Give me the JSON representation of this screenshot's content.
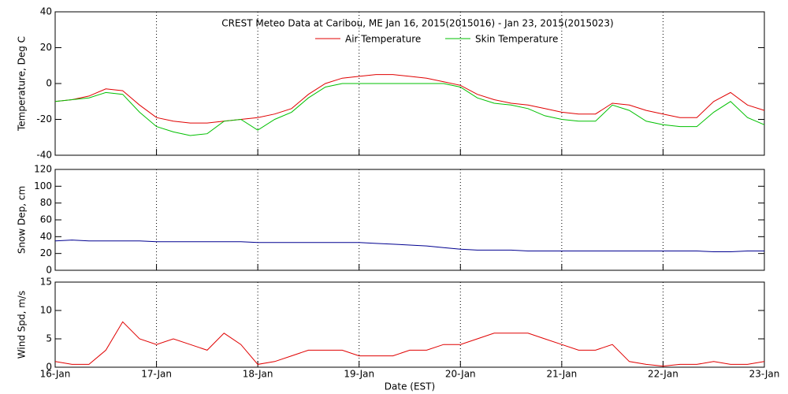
{
  "chart_data": [
    {
      "type": "line",
      "title": "CREST Meteo Data at Caribou, ME   Jan 16, 2015(2015016) - Jan 23, 2015(2015023)",
      "y_label": "Temperature, Deg C",
      "x": [
        0,
        4,
        8,
        12,
        16,
        20,
        24,
        28,
        32,
        36,
        40,
        44,
        48,
        52,
        56,
        60,
        64,
        68,
        72,
        76,
        80,
        84,
        88,
        92,
        96,
        100,
        104,
        108,
        112,
        116,
        120,
        124,
        128,
        132,
        136,
        140,
        144,
        148,
        152,
        156,
        160,
        164,
        168
      ],
      "series": [
        {
          "name": "Air Temperature",
          "color": "#e00000",
          "values": [
            -10,
            -9,
            -7,
            -3,
            -4,
            -12,
            -19,
            -21,
            -22,
            -22,
            -21,
            -20,
            -19,
            -17,
            -14,
            -6,
            0,
            3,
            4,
            5,
            5,
            4,
            3,
            1,
            -1,
            -6,
            -9,
            -11,
            -12,
            -14,
            -16,
            -17,
            -17,
            -11,
            -12,
            -15,
            -17,
            -19,
            -19,
            -10,
            -5,
            -12,
            -15
          ]
        },
        {
          "name": "Skin Temperature",
          "color": "#00c000",
          "values": [
            -10,
            -9,
            -8,
            -5,
            -6,
            -16,
            -24,
            -27,
            -29,
            -28,
            -21,
            -20,
            -26,
            -20,
            -16,
            -8,
            -2,
            0,
            0,
            0,
            0,
            0,
            0,
            0,
            -2,
            -8,
            -11,
            -12,
            -14,
            -18,
            -20,
            -21,
            -21,
            -12,
            -15,
            -21,
            -23,
            -24,
            -24,
            -16,
            -10,
            -19,
            -23
          ]
        }
      ],
      "xlim": [
        0,
        168
      ],
      "xticks": [
        24,
        48,
        72,
        96,
        120,
        144
      ],
      "ylim": [
        -40,
        40
      ],
      "yticks": [
        -40,
        -20,
        0,
        20,
        40
      ],
      "grid": true
    },
    {
      "type": "line",
      "y_label": "Snow Dep, cm",
      "x": [
        0,
        4,
        8,
        12,
        16,
        20,
        24,
        28,
        32,
        36,
        40,
        44,
        48,
        52,
        56,
        60,
        64,
        68,
        72,
        76,
        80,
        84,
        88,
        92,
        96,
        100,
        104,
        108,
        112,
        116,
        120,
        124,
        128,
        132,
        136,
        140,
        144,
        148,
        152,
        156,
        160,
        164,
        168
      ],
      "series": [
        {
          "name": "Snow Depth",
          "color": "#000090",
          "values": [
            35,
            36,
            35,
            35,
            35,
            35,
            34,
            34,
            34,
            34,
            34,
            34,
            33,
            33,
            33,
            33,
            33,
            33,
            33,
            32,
            31,
            30,
            29,
            27,
            25,
            24,
            24,
            24,
            23,
            23,
            23,
            23,
            23,
            23,
            23,
            23,
            23,
            23,
            23,
            22,
            22,
            23,
            23
          ]
        }
      ],
      "xlim": [
        0,
        168
      ],
      "xticks": [
        24,
        48,
        72,
        96,
        120,
        144
      ],
      "ylim": [
        0,
        120
      ],
      "yticks": [
        0,
        20,
        40,
        60,
        80,
        100,
        120
      ],
      "grid": true
    },
    {
      "type": "line",
      "y_label": "Wind Spd, m/s",
      "x_label": "Date (EST)",
      "x": [
        0,
        4,
        8,
        12,
        16,
        20,
        24,
        28,
        32,
        36,
        40,
        44,
        48,
        52,
        56,
        60,
        64,
        68,
        72,
        76,
        80,
        84,
        88,
        92,
        96,
        100,
        104,
        108,
        112,
        116,
        120,
        124,
        128,
        132,
        136,
        140,
        144,
        148,
        152,
        156,
        160,
        164,
        168
      ],
      "series": [
        {
          "name": "Wind Speed",
          "color": "#e00000",
          "values": [
            1,
            0.5,
            0.5,
            3,
            8,
            5,
            4,
            5,
            4,
            3,
            6,
            4,
            0.5,
            1,
            2,
            3,
            3,
            3,
            2,
            2,
            2,
            3,
            3,
            4,
            4,
            5,
            6,
            6,
            6,
            5,
            4,
            3,
            3,
            4,
            1,
            0.5,
            0.2,
            0.5,
            0.5,
            1,
            0.5,
            0.5,
            1
          ]
        }
      ],
      "xlim": [
        0,
        168
      ],
      "xticks": [
        {
          "value": 0,
          "label": "16-Jan"
        },
        {
          "value": 24,
          "label": "17-Jan"
        },
        {
          "value": 48,
          "label": "18-Jan"
        },
        {
          "value": 72,
          "label": "19-Jan"
        },
        {
          "value": 96,
          "label": "20-Jan"
        },
        {
          "value": 120,
          "label": "21-Jan"
        },
        {
          "value": 144,
          "label": "22-Jan"
        },
        {
          "value": 168,
          "label": "23-Jan"
        }
      ],
      "ylim": [
        0,
        15
      ],
      "yticks": [
        0,
        5,
        10,
        15
      ],
      "grid": true
    }
  ]
}
